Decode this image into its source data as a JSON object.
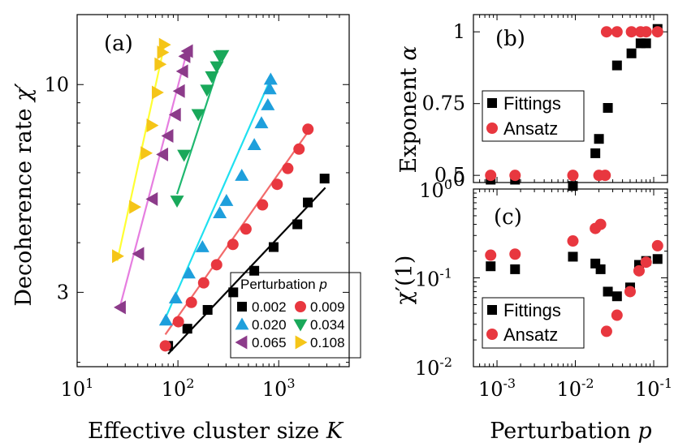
{
  "colors": {
    "0.002": "#000000",
    "0.009": "#e8373f",
    "0.020": "#1e9fdc",
    "0.034": "#19a85a",
    "0.065": "#8c3b8a",
    "0.108": "#f5c518",
    "fit_0.002": "#000000",
    "fit_0.009": "#f26b6b",
    "fit_0.020": "#1fe0f0",
    "fit_0.034": "#1fb870",
    "fit_0.065": "#e67ee0",
    "fit_0.108": "#ffff33",
    "fittings": "#000000",
    "ansatz": "#e8373f"
  },
  "chart_data": [
    {
      "id": "a",
      "type": "scatter",
      "panel_label": "(a)",
      "xlabel": "Effective cluster size",
      "xlabel_var": "K",
      "ylabel": "Decoherence rate",
      "ylabel_var": "χ′",
      "xscale": "log",
      "yscale": "log",
      "xlim": [
        10,
        5000
      ],
      "ylim": [
        1.95,
        15.0
      ],
      "xticks": [
        10,
        100,
        1000
      ],
      "xtick_labels": [
        {
          "base": "10",
          "exp": "1"
        },
        {
          "base": "10",
          "exp": "2"
        },
        {
          "base": "10",
          "exp": "3"
        }
      ],
      "yticks": [
        3,
        10
      ],
      "ytick_labels": [
        "3",
        "10"
      ],
      "legend_title": "Perturbation",
      "legend_title_var": "p",
      "legend_entries": [
        "0.002",
        "0.009",
        "0.020",
        "0.034",
        "0.065",
        "0.108"
      ],
      "series": [
        {
          "name": "0.002",
          "marker": "square",
          "x": [
            80,
            124,
            197,
            354,
            572,
            890,
            1530,
            1943,
            2851
          ],
          "y": [
            2.2,
            2.43,
            2.71,
            3.0,
            3.4,
            3.9,
            4.45,
            5.05,
            5.8
          ],
          "fit_x": [
            80,
            2900
          ],
          "fit_y": [
            2.1,
            5.5
          ]
        },
        {
          "name": "0.009",
          "marker": "circle",
          "x": [
            75,
            101,
            136,
            180,
            242,
            351,
            473,
            690,
            965,
            1230,
            1590,
            1950
          ],
          "y": [
            2.2,
            2.53,
            2.83,
            3.17,
            3.52,
            3.96,
            4.33,
            4.98,
            5.61,
            6.15,
            6.88,
            7.72
          ],
          "fit_x": [
            75,
            1950
          ],
          "fit_y": [
            2.35,
            7.6
          ]
        },
        {
          "name": "0.020",
          "marker": "triangle-up",
          "x": [
            76,
            95,
            128,
            175,
            260,
            303,
            430,
            572,
            674,
            780,
            815,
            832
          ],
          "y": [
            2.55,
            2.9,
            3.35,
            3.9,
            4.75,
            5.1,
            5.9,
            7.05,
            8.0,
            8.88,
            9.74,
            10.3
          ],
          "fit_x": [
            76,
            840
          ],
          "fit_y": [
            2.6,
            10.4
          ]
        },
        {
          "name": "0.034",
          "marker": "triangle-down",
          "x": [
            98,
            115,
            159,
            194,
            217,
            243,
            260,
            276
          ],
          "y": [
            5.1,
            6.65,
            8.42,
            9.7,
            10.48,
            11.1,
            11.8,
            11.85
          ],
          "fit_x": [
            98,
            280
          ],
          "fit_y": [
            5.3,
            12.0
          ]
        },
        {
          "name": "0.065",
          "marker": "triangle-left",
          "x": [
            27,
            41,
            56,
            71,
            80,
            95,
            104,
            112,
            118,
            125
          ],
          "y": [
            2.75,
            3.75,
            5.15,
            6.67,
            7.43,
            8.4,
            9.63,
            10.8,
            11.78,
            12.14
          ],
          "fit_x": [
            27,
            125
          ],
          "fit_y": [
            2.8,
            12.3
          ]
        },
        {
          "name": "0.108",
          "marker": "triangle-right",
          "x": [
            25,
            37,
            48,
            55,
            62,
            66,
            70,
            73
          ],
          "y": [
            3.7,
            4.92,
            6.72,
            7.89,
            9.55,
            11.25,
            12.05,
            12.6
          ],
          "fit_x": [
            25,
            74
          ],
          "fit_y": [
            3.6,
            12.7
          ]
        }
      ]
    },
    {
      "id": "b",
      "type": "scatter",
      "panel_label": "(b)",
      "ylabel": "Exponent",
      "ylabel_var": "α",
      "xscale": "log",
      "xlim": [
        0.0005,
        0.15
      ],
      "ylim": [
        0.475,
        1.06
      ],
      "yticks": [
        0.5,
        0.75,
        1
      ],
      "ytick_labels": [
        "0.5",
        "0.75",
        "1"
      ],
      "legend_entries": [
        "Fittings",
        "Ansatz"
      ],
      "series": [
        {
          "name": "Fittings",
          "marker": "square",
          "x": [
            0.00083,
            0.0017,
            0.0093,
            0.018,
            0.02,
            0.026,
            0.034,
            0.052,
            0.068,
            0.08,
            0.112
          ],
          "y": [
            0.485,
            0.485,
            0.463,
            0.577,
            0.627,
            0.735,
            0.883,
            0.925,
            0.96,
            0.96,
            1.01
          ]
        },
        {
          "name": "Ansatz",
          "marker": "circle",
          "x": [
            0.00083,
            0.0017,
            0.0093,
            0.02,
            0.024,
            0.025,
            0.034,
            0.052,
            0.068,
            0.08,
            0.112
          ],
          "y": [
            0.5,
            0.5,
            0.5,
            0.5,
            0.5,
            1.0,
            1.0,
            1.0,
            1.0,
            1.0,
            1.0
          ]
        }
      ]
    },
    {
      "id": "c",
      "type": "scatter",
      "panel_label": "(c)",
      "xlabel": "Perturbation",
      "xlabel_var": "p",
      "ylabel": "χ′(1)",
      "xscale": "log",
      "yscale": "log",
      "xlim": [
        0.0005,
        0.15
      ],
      "ylim": [
        0.01,
        1
      ],
      "top_tick_label": "0",
      "xticks": [
        0.001,
        0.01,
        0.1
      ],
      "xtick_labels": [
        {
          "base": "10",
          "exp": "-3"
        },
        {
          "base": "10",
          "exp": "-2"
        },
        {
          "base": "10",
          "exp": "-1"
        }
      ],
      "yticks": [
        0.01,
        0.1,
        1
      ],
      "ytick_labels": [
        {
          "base": "10",
          "exp": "-2"
        },
        {
          "base": "10",
          "exp": "-1"
        },
        {
          "base": "10",
          "exp": "0"
        }
      ],
      "legend_entries": [
        "Fittings",
        "Ansatz"
      ],
      "series": [
        {
          "name": "Fittings",
          "marker": "square",
          "x": [
            0.00083,
            0.0017,
            0.0093,
            0.018,
            0.021,
            0.026,
            0.034,
            0.05,
            0.065,
            0.08,
            0.112
          ],
          "y": [
            0.135,
            0.125,
            0.173,
            0.145,
            0.125,
            0.07,
            0.062,
            0.078,
            0.14,
            0.155,
            0.163
          ]
        },
        {
          "name": "Ansatz",
          "marker": "circle",
          "x": [
            0.00083,
            0.0017,
            0.0093,
            0.018,
            0.021,
            0.025,
            0.034,
            0.05,
            0.065,
            0.08,
            0.112
          ],
          "y": [
            0.18,
            0.185,
            0.26,
            0.36,
            0.4,
            0.025,
            0.038,
            0.07,
            0.12,
            0.15,
            0.23
          ]
        }
      ]
    }
  ]
}
